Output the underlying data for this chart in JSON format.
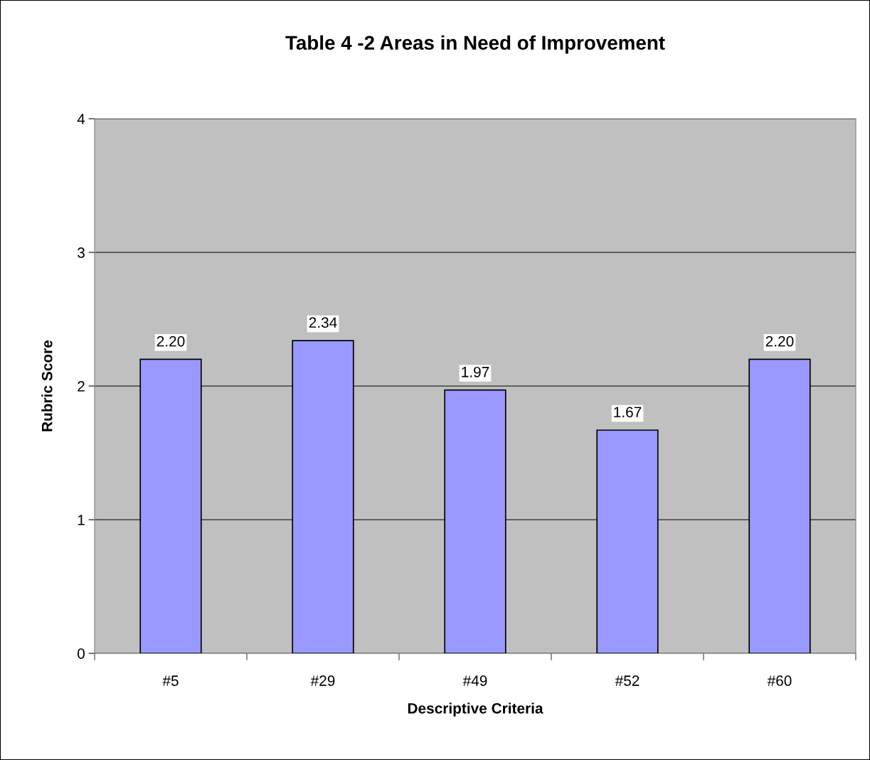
{
  "chart_data": {
    "type": "bar",
    "title": "Table 4 -2 Areas in Need of Improvement",
    "xlabel": "Descriptive Criteria",
    "ylabel": "Rubric Score",
    "categories": [
      "#5",
      "#29",
      "#49",
      "#52",
      "#60"
    ],
    "values": [
      2.2,
      2.34,
      1.97,
      1.67,
      2.2
    ],
    "value_labels": [
      "2.20",
      "2.34",
      "1.97",
      "1.67",
      "2.20"
    ],
    "color": "#9999ff",
    "ylim": [
      0,
      4
    ],
    "yticks": [
      0,
      1,
      2,
      3,
      4
    ],
    "grid": "y"
  }
}
